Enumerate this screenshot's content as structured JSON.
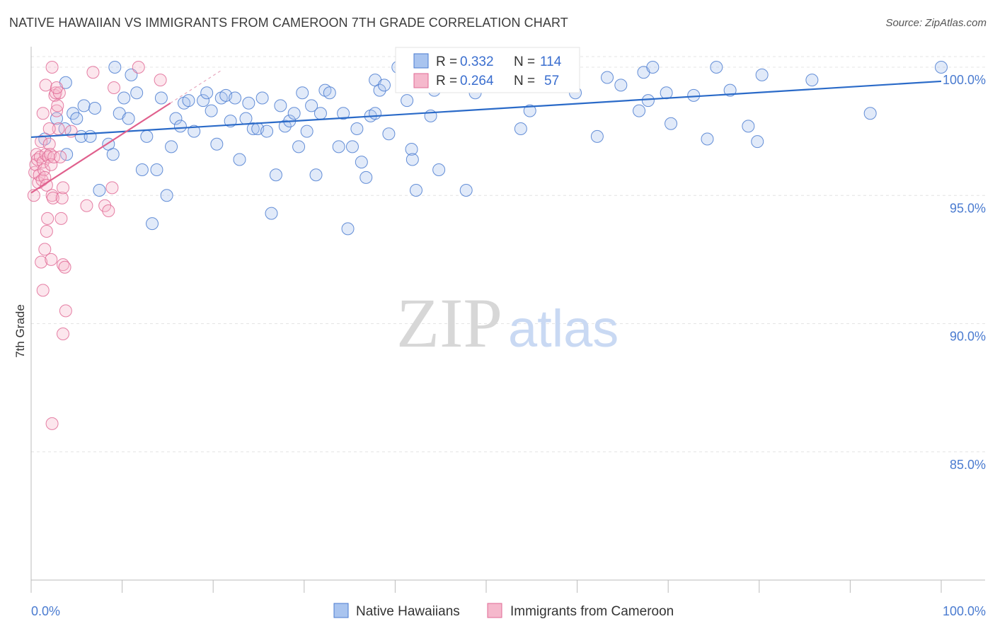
{
  "title": "NATIVE HAWAIIAN VS IMMIGRANTS FROM CAMEROON 7TH GRADE CORRELATION CHART",
  "source": "Source: ZipAtlas.com",
  "watermark": {
    "zip": "ZIP",
    "atlas": "atlas"
  },
  "legend": {
    "series1": {
      "r_label": "R =",
      "r_value": "0.332",
      "n_label": "N =",
      "n_value": "114"
    },
    "series2": {
      "r_label": "R =",
      "r_value": "0.264",
      "n_label": "N =",
      "n_value": "57"
    }
  },
  "bottom_legend": [
    "Native Hawaiians",
    "Immigrants from Cameroon"
  ],
  "chart_data": {
    "type": "scatter",
    "ylabel": "7th Grade",
    "xlabel": "",
    "xlim": [
      0,
      100
    ],
    "ylim": [
      80.0,
      100.8
    ],
    "x_tick_labels": [
      "0.0%",
      "100.0%"
    ],
    "y_ticks": [
      85.0,
      90.0,
      95.0,
      100.0
    ],
    "y_tick_labels": [
      "85.0%",
      "90.0%",
      "95.0%",
      "100.0%"
    ],
    "grid": true,
    "legend_position": "top-center",
    "colors": {
      "blue": "#4a7bd0",
      "blue_fill": "#a9c4ef",
      "pink": "#e06a95",
      "pink_fill": "#f5b8cc",
      "blue_line": "#2a6ac8",
      "pink_line": "#e0608d"
    },
    "series": [
      {
        "name": "Native Hawaiians",
        "color": "#4a7bd0",
        "trend": {
          "x0": 0,
          "y0": 97.27,
          "x1": 100,
          "y1": 99.45
        },
        "points": [
          [
            1.5,
            97.2
          ],
          [
            2.8,
            98.0
          ],
          [
            3.7,
            97.6
          ],
          [
            3.9,
            96.6
          ],
          [
            3.8,
            99.4
          ],
          [
            4.6,
            98.2
          ],
          [
            5.0,
            98.0
          ],
          [
            5.5,
            97.3
          ],
          [
            5.8,
            98.5
          ],
          [
            6.5,
            97.3
          ],
          [
            7.0,
            98.4
          ],
          [
            7.5,
            95.2
          ],
          [
            8.5,
            97.0
          ],
          [
            9.0,
            96.6
          ],
          [
            9.2,
            100.0
          ],
          [
            9.7,
            98.2
          ],
          [
            10.2,
            98.8
          ],
          [
            10.7,
            98.0
          ],
          [
            11.0,
            99.7
          ],
          [
            11.6,
            99.0
          ],
          [
            12.2,
            96.0
          ],
          [
            12.7,
            97.3
          ],
          [
            13.3,
            93.9
          ],
          [
            13.8,
            96.0
          ],
          [
            14.3,
            98.8
          ],
          [
            14.9,
            95.0
          ],
          [
            15.4,
            96.9
          ],
          [
            15.9,
            98.0
          ],
          [
            16.4,
            97.7
          ],
          [
            16.8,
            98.6
          ],
          [
            17.3,
            98.7
          ],
          [
            17.9,
            97.5
          ],
          [
            18.9,
            98.7
          ],
          [
            19.3,
            99.0
          ],
          [
            19.8,
            98.3
          ],
          [
            20.4,
            97.0
          ],
          [
            20.9,
            98.8
          ],
          [
            21.4,
            98.9
          ],
          [
            21.9,
            97.9
          ],
          [
            22.4,
            98.8
          ],
          [
            22.9,
            96.4
          ],
          [
            23.6,
            98.0
          ],
          [
            23.9,
            98.6
          ],
          [
            24.4,
            97.6
          ],
          [
            24.9,
            97.6
          ],
          [
            25.4,
            98.8
          ],
          [
            25.9,
            97.5
          ],
          [
            26.4,
            94.3
          ],
          [
            26.9,
            95.8
          ],
          [
            27.4,
            98.5
          ],
          [
            27.9,
            97.7
          ],
          [
            28.4,
            97.9
          ],
          [
            28.9,
            98.2
          ],
          [
            29.4,
            96.9
          ],
          [
            29.8,
            99.0
          ],
          [
            30.3,
            97.5
          ],
          [
            30.8,
            98.5
          ],
          [
            31.3,
            95.8
          ],
          [
            31.8,
            98.2
          ],
          [
            32.3,
            99.1
          ],
          [
            32.8,
            99.0
          ],
          [
            33.8,
            96.9
          ],
          [
            34.3,
            98.2
          ],
          [
            34.8,
            93.7
          ],
          [
            35.3,
            96.9
          ],
          [
            35.8,
            97.6
          ],
          [
            36.3,
            96.3
          ],
          [
            36.8,
            95.7
          ],
          [
            37.3,
            98.1
          ],
          [
            37.8,
            99.5
          ],
          [
            38.3,
            99.1
          ],
          [
            38.8,
            99.3
          ],
          [
            39.3,
            97.4
          ],
          [
            40.3,
            100.0
          ],
          [
            41.3,
            98.7
          ],
          [
            41.8,
            96.8
          ],
          [
            41.9,
            96.4
          ],
          [
            42.3,
            95.2
          ],
          [
            43.3,
            100.0
          ],
          [
            43.9,
            98.1
          ],
          [
            44.3,
            99.1
          ],
          [
            44.8,
            96.0
          ],
          [
            46.3,
            100.0
          ],
          [
            47.8,
            95.2
          ],
          [
            48.3,
            100.0
          ],
          [
            48.8,
            99.0
          ],
          [
            49.8,
            99.6
          ],
          [
            50.8,
            99.5
          ],
          [
            51.8,
            100.0
          ],
          [
            53.8,
            97.6
          ],
          [
            54.8,
            98.3
          ],
          [
            58.8,
            99.3
          ],
          [
            59.3,
            99.3
          ],
          [
            59.8,
            99.0
          ],
          [
            62.2,
            97.3
          ],
          [
            63.3,
            99.6
          ],
          [
            64.8,
            99.3
          ],
          [
            66.8,
            98.3
          ],
          [
            67.3,
            99.8
          ],
          [
            67.8,
            98.7
          ],
          [
            68.3,
            100.0
          ],
          [
            69.8,
            99.0
          ],
          [
            70.3,
            97.8
          ],
          [
            72.8,
            98.9
          ],
          [
            74.3,
            97.2
          ],
          [
            75.3,
            100.0
          ],
          [
            76.8,
            99.1
          ],
          [
            78.8,
            97.7
          ],
          [
            79.8,
            97.1
          ],
          [
            80.3,
            99.7
          ],
          [
            85.8,
            99.5
          ],
          [
            92.2,
            98.2
          ],
          [
            100.0,
            100.0
          ],
          [
            37.8,
            98.2
          ]
        ]
      },
      {
        "name": "Immigrants from Cameroon",
        "color": "#e06a95",
        "trend": {
          "x0": 0,
          "y0": 95.1,
          "x1": 15.3,
          "y1": 98.6,
          "dash_x1": 21.0,
          "dash_y1": 99.9
        },
        "points": [
          [
            0.3,
            95.0
          ],
          [
            0.4,
            95.9
          ],
          [
            0.5,
            96.2
          ],
          [
            0.6,
            96.6
          ],
          [
            0.7,
            96.4
          ],
          [
            0.8,
            95.5
          ],
          [
            0.9,
            95.8
          ],
          [
            1.0,
            96.5
          ],
          [
            1.1,
            97.1
          ],
          [
            1.2,
            95.6
          ],
          [
            1.3,
            96.3
          ],
          [
            1.4,
            96.0
          ],
          [
            1.5,
            95.7
          ],
          [
            1.6,
            96.6
          ],
          [
            1.7,
            95.4
          ],
          [
            1.8,
            94.1
          ],
          [
            1.9,
            96.5
          ],
          [
            2.0,
            97.0
          ],
          [
            2.1,
            96.6
          ],
          [
            2.2,
            96.2
          ],
          [
            2.3,
            95.0
          ],
          [
            2.4,
            94.9
          ],
          [
            2.5,
            96.5
          ],
          [
            2.6,
            98.9
          ],
          [
            2.7,
            99.0
          ],
          [
            2.8,
            98.3
          ],
          [
            2.9,
            98.5
          ],
          [
            3.0,
            97.6
          ],
          [
            3.1,
            99.0
          ],
          [
            3.2,
            96.5
          ],
          [
            3.3,
            94.1
          ],
          [
            3.4,
            94.9
          ],
          [
            3.5,
            95.3
          ],
          [
            1.3,
            98.2
          ],
          [
            2.0,
            97.6
          ],
          [
            1.6,
            99.3
          ],
          [
            2.8,
            99.2
          ],
          [
            3.5,
            92.3
          ],
          [
            3.7,
            92.2
          ],
          [
            3.8,
            90.5
          ],
          [
            3.5,
            89.6
          ],
          [
            1.1,
            92.4
          ],
          [
            1.3,
            91.3
          ],
          [
            1.5,
            92.9
          ],
          [
            2.2,
            92.5
          ],
          [
            1.7,
            93.6
          ],
          [
            2.3,
            86.1
          ],
          [
            6.1,
            94.6
          ],
          [
            8.1,
            94.6
          ],
          [
            8.5,
            94.4
          ],
          [
            8.9,
            95.3
          ],
          [
            4.4,
            97.5
          ],
          [
            6.8,
            99.8
          ],
          [
            9.1,
            99.2
          ],
          [
            2.3,
            100.0
          ],
          [
            11.8,
            100.0
          ],
          [
            14.2,
            99.5
          ]
        ]
      }
    ]
  }
}
